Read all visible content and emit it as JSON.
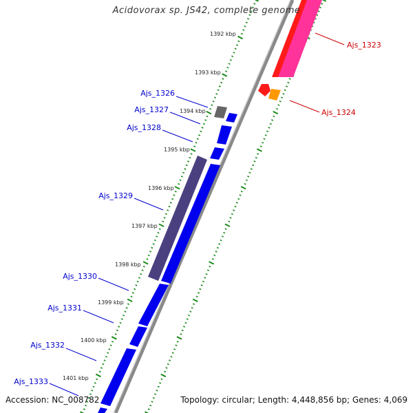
{
  "title": "Acidovorax sp. JS42, complete genome",
  "footer": {
    "accession": "Accession: NC_008782",
    "topology": "Topology: circular; Length: 4,448,856 bp; Genes: 4,069"
  },
  "colors": {
    "backbone": "#8a8a8a",
    "tick_dots": "#1a8a1a",
    "forward_gene": "#ff1a1a",
    "forward_gene_alt": "#ff3399",
    "forward_small": "#ff9900",
    "reverse_gene": "#0000ee",
    "reverse_gene_gray": "#666666",
    "reverse_gene_purple": "#4a4080",
    "label_blue": "#0000cc",
    "label_red": "#cc0000"
  },
  "ruler": {
    "labels": [
      "1392 kbp",
      "1393 kbp",
      "1394 kbp",
      "1395 kbp",
      "1396 kbp",
      "1397 kbp",
      "1398 kbp",
      "1399 kbp",
      "1400 kbp",
      "1401 kbp"
    ]
  },
  "reverse_labels": [
    "Ajs_1326",
    "Ajs_1327",
    "Ajs_1328",
    "Ajs_1329",
    "Ajs_1330",
    "Ajs_1331",
    "Ajs_1332",
    "Ajs_1333"
  ],
  "forward_labels": [
    "Ajs_1323",
    "Ajs_1324"
  ]
}
